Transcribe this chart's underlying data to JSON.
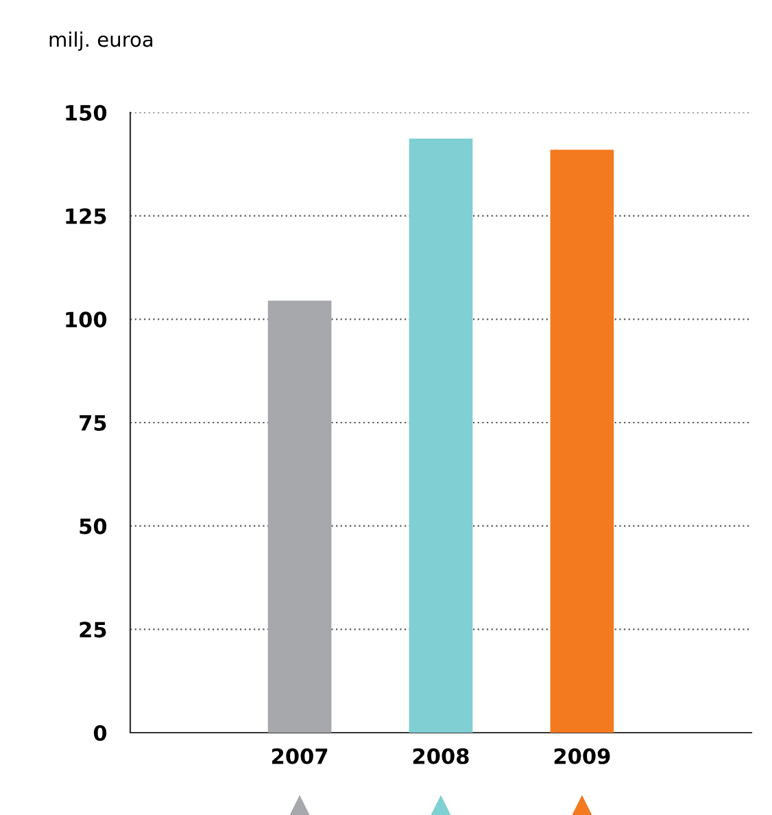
{
  "chart_data": {
    "type": "bar",
    "ylabel": "milj. euroa",
    "categories": [
      "2007",
      "2008",
      "2009"
    ],
    "values": [
      104.5,
      143.7,
      141
    ],
    "colors": [
      "#a7a8ac",
      "#7fcfd3",
      "#f47a20"
    ],
    "ylim": [
      0,
      150
    ],
    "yticks": [
      0,
      25,
      50,
      75,
      100,
      125,
      150
    ],
    "grid": "y"
  }
}
